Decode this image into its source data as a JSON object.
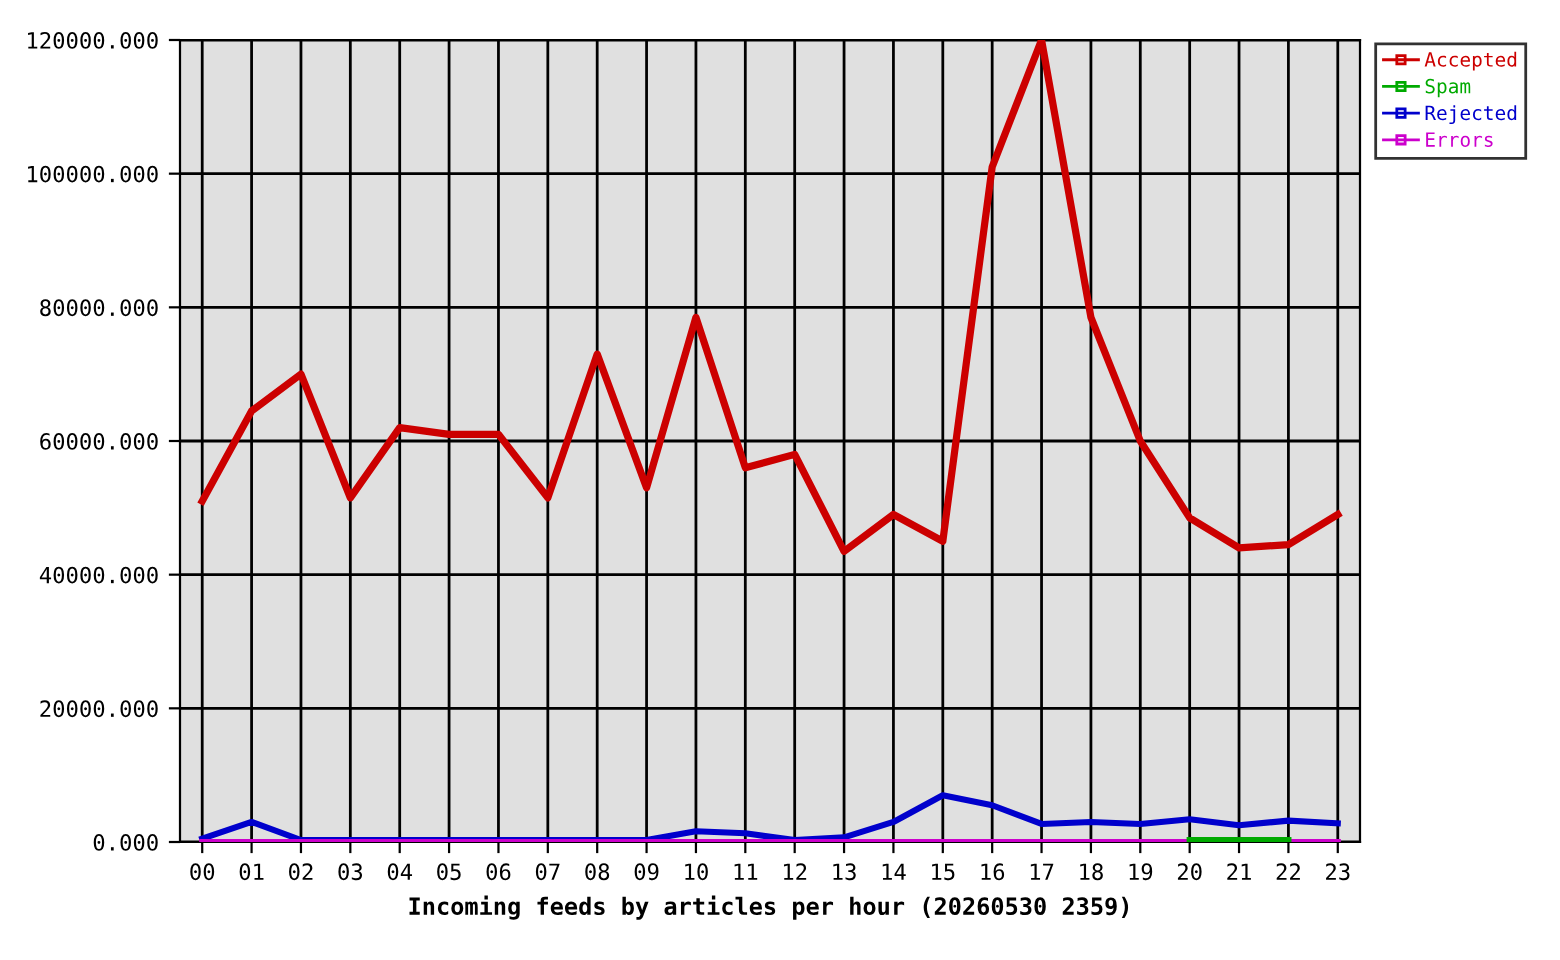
{
  "chart_data": {
    "type": "line",
    "xlabel": "Incoming feeds by articles per hour (20260530 2359)",
    "categories": [
      "00",
      "01",
      "02",
      "03",
      "04",
      "05",
      "06",
      "07",
      "08",
      "09",
      "10",
      "11",
      "12",
      "13",
      "14",
      "15",
      "16",
      "17",
      "18",
      "19",
      "20",
      "21",
      "22",
      "23"
    ],
    "series": [
      {
        "name": "Accepted",
        "color": "#cc0000",
        "values": [
          51000,
          64500,
          70000,
          51500,
          62000,
          61000,
          61000,
          51500,
          73000,
          53000,
          78500,
          56000,
          58000,
          43500,
          49000,
          45000,
          101000,
          120000,
          78500,
          60000,
          48500,
          44000,
          44500,
          49000
        ]
      },
      {
        "name": "Spam",
        "color": "#00aa00",
        "values": [
          null,
          null,
          null,
          null,
          null,
          null,
          null,
          null,
          null,
          null,
          null,
          null,
          null,
          null,
          null,
          null,
          null,
          null,
          null,
          null,
          300,
          300,
          300,
          null
        ]
      },
      {
        "name": "Rejected",
        "color": "#0000cc",
        "values": [
          500,
          3000,
          300,
          300,
          300,
          300,
          300,
          300,
          300,
          300,
          1600,
          1300,
          300,
          700,
          3000,
          7000,
          5500,
          2700,
          3000,
          2700,
          3400,
          2500,
          3200,
          2800
        ]
      },
      {
        "name": "Errors",
        "color": "#cc00cc",
        "values": [
          0,
          0,
          0,
          0,
          0,
          0,
          0,
          0,
          0,
          0,
          0,
          0,
          0,
          0,
          0,
          0,
          0,
          0,
          0,
          0,
          0,
          0,
          0,
          0
        ]
      }
    ],
    "ylim": [
      0,
      120000
    ],
    "yticks": [
      {
        "value": 0,
        "label": "0.000"
      },
      {
        "value": 20000,
        "label": "20000.000"
      },
      {
        "value": 40000,
        "label": "40000.000"
      },
      {
        "value": 60000,
        "label": "60000.000"
      },
      {
        "value": 80000,
        "label": "80000.000"
      },
      {
        "value": 100000,
        "label": "100000.000"
      },
      {
        "value": 120000,
        "label": "120000.000"
      }
    ],
    "grid": true,
    "legend": "top right",
    "marker": "none",
    "line_style": "solid"
  }
}
